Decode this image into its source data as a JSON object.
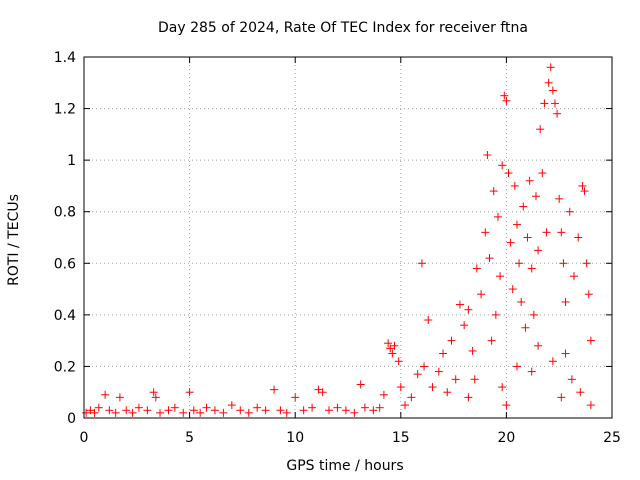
{
  "chart_data": {
    "type": "scatter",
    "title": "Day 285 of 2024, Rate Of TEC Index for receiver ftna",
    "xlabel": "GPS time / hours",
    "ylabel": "ROTI / TECUs",
    "xlim": [
      0,
      25
    ],
    "ylim": [
      0,
      1.4
    ],
    "x_ticks": [
      0,
      5,
      10,
      15,
      20,
      25
    ],
    "x_tick_labels": [
      "0",
      "5",
      "10",
      "15",
      "20",
      "25"
    ],
    "y_ticks": [
      0,
      0.2,
      0.4,
      0.6,
      0.8,
      1.0,
      1.2,
      1.4
    ],
    "y_tick_labels": [
      "0",
      "0.2",
      "0.4",
      "0.6",
      "0.8",
      "1",
      "1.2",
      "1.4"
    ],
    "grid": true,
    "marker": "+",
    "color": "#ff0000",
    "series": [
      {
        "name": "ROTI",
        "points": [
          [
            0.1,
            0.02
          ],
          [
            0.3,
            0.03
          ],
          [
            0.5,
            0.02
          ],
          [
            0.7,
            0.04
          ],
          [
            1.0,
            0.09
          ],
          [
            1.2,
            0.03
          ],
          [
            1.5,
            0.02
          ],
          [
            1.7,
            0.08
          ],
          [
            2.0,
            0.03
          ],
          [
            2.3,
            0.02
          ],
          [
            2.6,
            0.04
          ],
          [
            3.0,
            0.03
          ],
          [
            3.3,
            0.1
          ],
          [
            3.4,
            0.08
          ],
          [
            3.6,
            0.02
          ],
          [
            4.0,
            0.03
          ],
          [
            4.3,
            0.04
          ],
          [
            4.7,
            0.02
          ],
          [
            5.0,
            0.1
          ],
          [
            5.2,
            0.03
          ],
          [
            5.5,
            0.02
          ],
          [
            5.8,
            0.04
          ],
          [
            6.2,
            0.03
          ],
          [
            6.6,
            0.02
          ],
          [
            7.0,
            0.05
          ],
          [
            7.4,
            0.03
          ],
          [
            7.8,
            0.02
          ],
          [
            8.2,
            0.04
          ],
          [
            8.6,
            0.03
          ],
          [
            9.0,
            0.11
          ],
          [
            9.3,
            0.03
          ],
          [
            9.6,
            0.02
          ],
          [
            10.0,
            0.08
          ],
          [
            10.4,
            0.03
          ],
          [
            10.8,
            0.04
          ],
          [
            11.1,
            0.11
          ],
          [
            11.3,
            0.1
          ],
          [
            11.6,
            0.03
          ],
          [
            12.0,
            0.04
          ],
          [
            12.4,
            0.03
          ],
          [
            12.8,
            0.02
          ],
          [
            13.1,
            0.13
          ],
          [
            13.3,
            0.04
          ],
          [
            13.7,
            0.03
          ],
          [
            14.0,
            0.04
          ],
          [
            14.2,
            0.09
          ],
          [
            14.4,
            0.29
          ],
          [
            14.5,
            0.27
          ],
          [
            14.6,
            0.25
          ],
          [
            14.7,
            0.28
          ],
          [
            14.9,
            0.22
          ],
          [
            15.0,
            0.12
          ],
          [
            15.2,
            0.05
          ],
          [
            15.5,
            0.08
          ],
          [
            15.8,
            0.17
          ],
          [
            16.0,
            0.6
          ],
          [
            16.1,
            0.2
          ],
          [
            16.3,
            0.38
          ],
          [
            16.5,
            0.12
          ],
          [
            16.8,
            0.18
          ],
          [
            17.0,
            0.25
          ],
          [
            17.2,
            0.1
          ],
          [
            17.4,
            0.3
          ],
          [
            17.6,
            0.15
          ],
          [
            17.8,
            0.44
          ],
          [
            18.0,
            0.36
          ],
          [
            18.2,
            0.42
          ],
          [
            18.4,
            0.26
          ],
          [
            18.6,
            0.58
          ],
          [
            18.8,
            0.48
          ],
          [
            19.0,
            0.72
          ],
          [
            19.1,
            1.02
          ],
          [
            19.2,
            0.62
          ],
          [
            19.4,
            0.88
          ],
          [
            19.5,
            0.4
          ],
          [
            19.6,
            0.78
          ],
          [
            19.7,
            0.55
          ],
          [
            19.8,
            0.98
          ],
          [
            19.9,
            1.25
          ],
          [
            20.0,
            1.23
          ],
          [
            20.1,
            0.95
          ],
          [
            20.2,
            0.68
          ],
          [
            20.3,
            0.5
          ],
          [
            20.4,
            0.9
          ],
          [
            20.5,
            0.75
          ],
          [
            20.6,
            0.6
          ],
          [
            20.7,
            0.45
          ],
          [
            20.8,
            0.82
          ],
          [
            21.0,
            0.7
          ],
          [
            21.1,
            0.92
          ],
          [
            21.2,
            0.58
          ],
          [
            21.3,
            0.4
          ],
          [
            21.4,
            0.86
          ],
          [
            21.5,
            0.65
          ],
          [
            21.6,
            1.12
          ],
          [
            21.7,
            0.95
          ],
          [
            21.8,
            1.22
          ],
          [
            21.9,
            0.72
          ],
          [
            22.0,
            1.3
          ],
          [
            22.1,
            1.36
          ],
          [
            22.2,
            1.27
          ],
          [
            22.3,
            1.22
          ],
          [
            22.4,
            1.18
          ],
          [
            22.5,
            0.85
          ],
          [
            22.6,
            0.72
          ],
          [
            22.7,
            0.6
          ],
          [
            22.8,
            0.45
          ],
          [
            23.0,
            0.8
          ],
          [
            23.2,
            0.55
          ],
          [
            23.4,
            0.7
          ],
          [
            23.6,
            0.9
          ],
          [
            23.7,
            0.88
          ],
          [
            23.8,
            0.6
          ],
          [
            23.9,
            0.48
          ],
          [
            24.0,
            0.3
          ],
          [
            18.5,
            0.15
          ],
          [
            19.3,
            0.3
          ],
          [
            20.9,
            0.35
          ],
          [
            21.5,
            0.28
          ],
          [
            22.8,
            0.25
          ],
          [
            19.8,
            0.12
          ],
          [
            20.5,
            0.2
          ],
          [
            21.2,
            0.18
          ],
          [
            22.2,
            0.22
          ],
          [
            23.1,
            0.15
          ],
          [
            23.5,
            0.1
          ],
          [
            18.2,
            0.08
          ],
          [
            20.0,
            0.05
          ],
          [
            22.6,
            0.08
          ],
          [
            24.0,
            0.05
          ]
        ]
      }
    ]
  }
}
